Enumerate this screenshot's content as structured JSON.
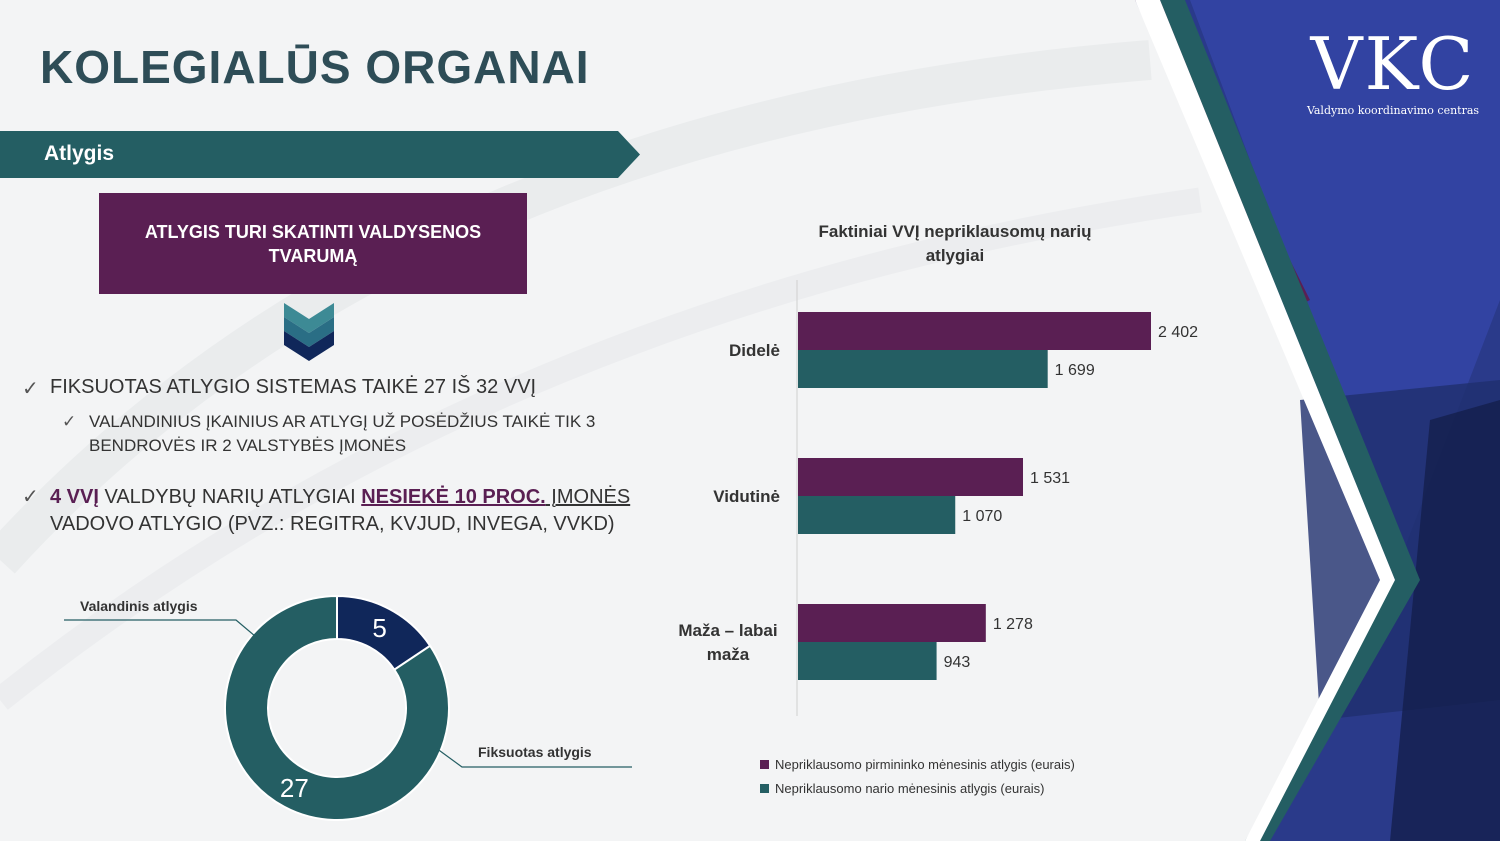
{
  "header": {
    "title": "KOLEGIALŪS ORGANAI",
    "section": "Atlygis"
  },
  "purple_box": {
    "text": "ATLYGIS TURI SKATINTI VALDYSENOS TVARUMĄ"
  },
  "bullets": {
    "b1": "FIKSUOTAS ATLYGIO SISTEMAS TAIKĖ 27 IŠ 32 VVĮ",
    "b2": "VALANDINIUS ĮKAINIUS AR ATLYGĮ UŽ POSĖDŽIUS TAIKĖ TIK 3 BENDROVĖS IR 2 VALSTYBĖS ĮMONĖS",
    "b3_part1": "4 VVĮ",
    "b3_part2": " VALDYBŲ NARIŲ ATLYGIAI ",
    "b3_part3": "NESIEKĖ 10 PROC.",
    "b3_part4": " ĮMONĖS",
    "b3_part5": " VADOVO ATLYGIO (PVZ.: REGITRA, KVJUD, INVEGA, VVKD)"
  },
  "logo": {
    "main": "VKC",
    "sub": "Valdymo koordinavimo centras"
  },
  "colors": {
    "purple": "#5a1f53",
    "teal": "#245e63",
    "navy": "#10275a",
    "banner": "#245e63"
  },
  "chart_data": [
    {
      "type": "pie",
      "labels": [
        "Valandinis atlygis",
        "Fiksuotas atlygis"
      ],
      "values": [
        5,
        27
      ],
      "colors": [
        "#10275a",
        "#245e63"
      ]
    },
    {
      "type": "bar",
      "orientation": "horizontal",
      "title": "Faktiniai VVĮ nepriklausomų narių atlygiai",
      "categories": [
        "Didelė",
        "Vidutinė",
        "Maža – labai maža"
      ],
      "series": [
        {
          "name": "Nepriklausomo pirmininko mėnesinis atlygis (eurais)",
          "values": [
            2402,
            1531,
            1278
          ],
          "labels": [
            "2 402",
            "1 531",
            "1 278"
          ],
          "color": "#5a1f53"
        },
        {
          "name": "Nepriklausomo nario mėnesinis atlygis (eurais)",
          "values": [
            1699,
            1070,
            943
          ],
          "labels": [
            "1 699",
            "1 070",
            "943"
          ],
          "color": "#245e63"
        }
      ]
    }
  ]
}
